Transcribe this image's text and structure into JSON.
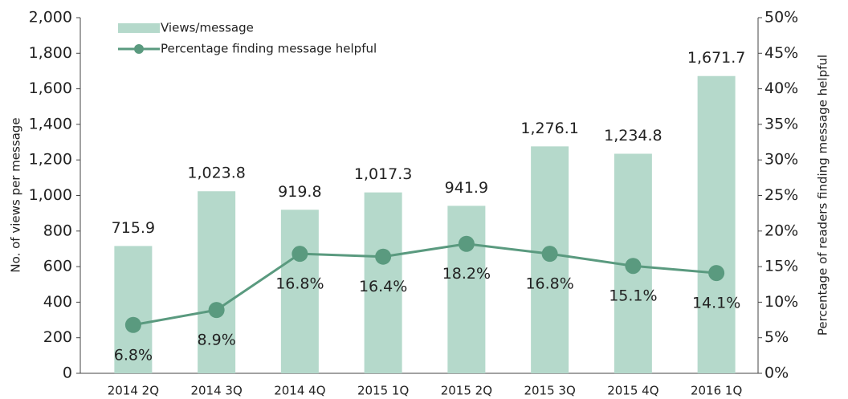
{
  "chart_data": {
    "type": "bar_line",
    "categories": [
      "2014 2Q",
      "2014 3Q",
      "2014 4Q",
      "2015 1Q",
      "2015 2Q",
      "2015 3Q",
      "2015 4Q",
      "2016 1Q"
    ],
    "series": [
      {
        "name": "Views/message",
        "color": "#b5d9cb",
        "type": "bar",
        "values": [
          715.9,
          1023.8,
          919.8,
          1017.3,
          941.9,
          1276.1,
          1234.8,
          1671.7
        ],
        "value_labels": [
          "715.9",
          "1,023.8",
          "919.8",
          "1,017.3",
          "941.9",
          "1,276.1",
          "1,234.8",
          "1,671.7"
        ]
      },
      {
        "name": "Percentage finding message helpful",
        "color": "#5a9a7f",
        "type": "line",
        "axis": "y2",
        "values": [
          6.8,
          8.9,
          16.8,
          16.4,
          18.2,
          16.8,
          15.1,
          14.1
        ],
        "value_labels": [
          "6.8%",
          "8.9%",
          "16.8%",
          "16.4%",
          "18.2%",
          "16.8%",
          "15.1%",
          "14.1%"
        ]
      }
    ],
    "ylabel": "No. of views per message",
    "y2label": "Percentage of readers finding message helpful",
    "ylim": [
      0,
      2000
    ],
    "yticks": [
      0,
      200,
      400,
      600,
      800,
      {
        "value": 1000,
        "label": "1,000"
      },
      {
        "value": 1200,
        "label": "1,200"
      },
      {
        "value": 1400,
        "label": "1,400"
      },
      {
        "value": 1600,
        "label": "1,600"
      },
      {
        "value": 1800,
        "label": "1,800"
      },
      {
        "value": 2000,
        "label": "2,000"
      }
    ],
    "y2lim": [
      0,
      50
    ],
    "y2ticks": [
      {
        "value": 0,
        "label": "0%"
      },
      {
        "value": 5,
        "label": "5%"
      },
      {
        "value": 10,
        "label": "10%"
      },
      {
        "value": 15,
        "label": "15%"
      },
      {
        "value": 20,
        "label": "20%"
      },
      {
        "value": 25,
        "label": "25%"
      },
      {
        "value": 30,
        "label": "30%"
      },
      {
        "value": 35,
        "label": "35%"
      },
      {
        "value": 40,
        "label": "40%"
      },
      {
        "value": 45,
        "label": "45%"
      },
      {
        "value": 50,
        "label": "50%"
      }
    ],
    "legend": "upper left"
  }
}
